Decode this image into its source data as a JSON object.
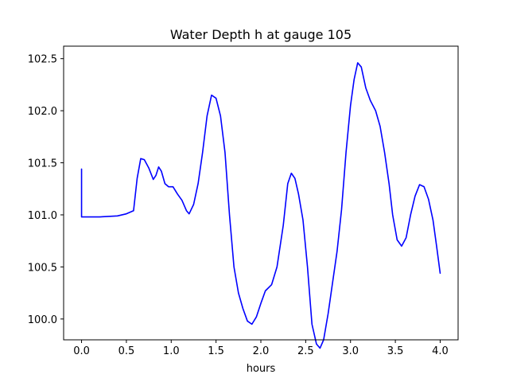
{
  "chart_data": {
    "type": "line",
    "title": "Water Depth h at gauge 105",
    "xlabel": "hours",
    "ylabel": "",
    "xlim": [
      -0.2,
      4.2
    ],
    "ylim": [
      99.8,
      102.62
    ],
    "xticks": [
      0.0,
      0.5,
      1.0,
      1.5,
      2.0,
      2.5,
      3.0,
      3.5,
      4.0
    ],
    "xtick_labels": [
      "0.0",
      "0.5",
      "1.0",
      "1.5",
      "2.0",
      "2.5",
      "3.0",
      "3.5",
      "4.0"
    ],
    "yticks": [
      100.0,
      100.5,
      101.0,
      101.5,
      102.0,
      102.5
    ],
    "ytick_labels": [
      "100.0",
      "100.5",
      "101.0",
      "101.5",
      "102.0",
      "102.5"
    ],
    "grid": false,
    "legend": "none",
    "series": [
      {
        "color": "#0000ff",
        "points": [
          [
            0.0,
            101.44
          ],
          [
            0.0,
            100.98
          ],
          [
            0.1,
            100.98
          ],
          [
            0.2,
            100.98
          ],
          [
            0.3,
            100.985
          ],
          [
            0.4,
            100.99
          ],
          [
            0.5,
            101.01
          ],
          [
            0.58,
            101.04
          ],
          [
            0.62,
            101.35
          ],
          [
            0.66,
            101.54
          ],
          [
            0.7,
            101.53
          ],
          [
            0.75,
            101.45
          ],
          [
            0.8,
            101.34
          ],
          [
            0.83,
            101.38
          ],
          [
            0.86,
            101.46
          ],
          [
            0.89,
            101.42
          ],
          [
            0.93,
            101.3
          ],
          [
            0.97,
            101.27
          ],
          [
            1.02,
            101.27
          ],
          [
            1.07,
            101.2
          ],
          [
            1.12,
            101.14
          ],
          [
            1.17,
            101.04
          ],
          [
            1.2,
            101.01
          ],
          [
            1.25,
            101.1
          ],
          [
            1.3,
            101.3
          ],
          [
            1.35,
            101.6
          ],
          [
            1.4,
            101.95
          ],
          [
            1.45,
            102.15
          ],
          [
            1.5,
            102.12
          ],
          [
            1.55,
            101.95
          ],
          [
            1.6,
            101.6
          ],
          [
            1.65,
            101.0
          ],
          [
            1.7,
            100.5
          ],
          [
            1.75,
            100.25
          ],
          [
            1.8,
            100.1
          ],
          [
            1.85,
            99.98
          ],
          [
            1.9,
            99.95
          ],
          [
            1.95,
            100.02
          ],
          [
            2.0,
            100.15
          ],
          [
            2.05,
            100.27
          ],
          [
            2.12,
            100.33
          ],
          [
            2.18,
            100.5
          ],
          [
            2.25,
            100.9
          ],
          [
            2.3,
            101.3
          ],
          [
            2.34,
            101.4
          ],
          [
            2.38,
            101.35
          ],
          [
            2.42,
            101.2
          ],
          [
            2.47,
            100.95
          ],
          [
            2.52,
            100.5
          ],
          [
            2.57,
            99.95
          ],
          [
            2.62,
            99.76
          ],
          [
            2.66,
            99.72
          ],
          [
            2.7,
            99.8
          ],
          [
            2.75,
            100.05
          ],
          [
            2.8,
            100.35
          ],
          [
            2.85,
            100.65
          ],
          [
            2.9,
            101.05
          ],
          [
            2.95,
            101.6
          ],
          [
            3.0,
            102.05
          ],
          [
            3.04,
            102.3
          ],
          [
            3.08,
            102.46
          ],
          [
            3.12,
            102.42
          ],
          [
            3.17,
            102.22
          ],
          [
            3.22,
            102.1
          ],
          [
            3.28,
            102.0
          ],
          [
            3.33,
            101.85
          ],
          [
            3.38,
            101.6
          ],
          [
            3.43,
            101.3
          ],
          [
            3.47,
            101.0
          ],
          [
            3.52,
            100.76
          ],
          [
            3.57,
            100.7
          ],
          [
            3.62,
            100.78
          ],
          [
            3.67,
            101.0
          ],
          [
            3.72,
            101.18
          ],
          [
            3.77,
            101.29
          ],
          [
            3.82,
            101.27
          ],
          [
            3.87,
            101.15
          ],
          [
            3.92,
            100.95
          ],
          [
            3.96,
            100.7
          ],
          [
            4.0,
            100.44
          ]
        ]
      }
    ]
  }
}
